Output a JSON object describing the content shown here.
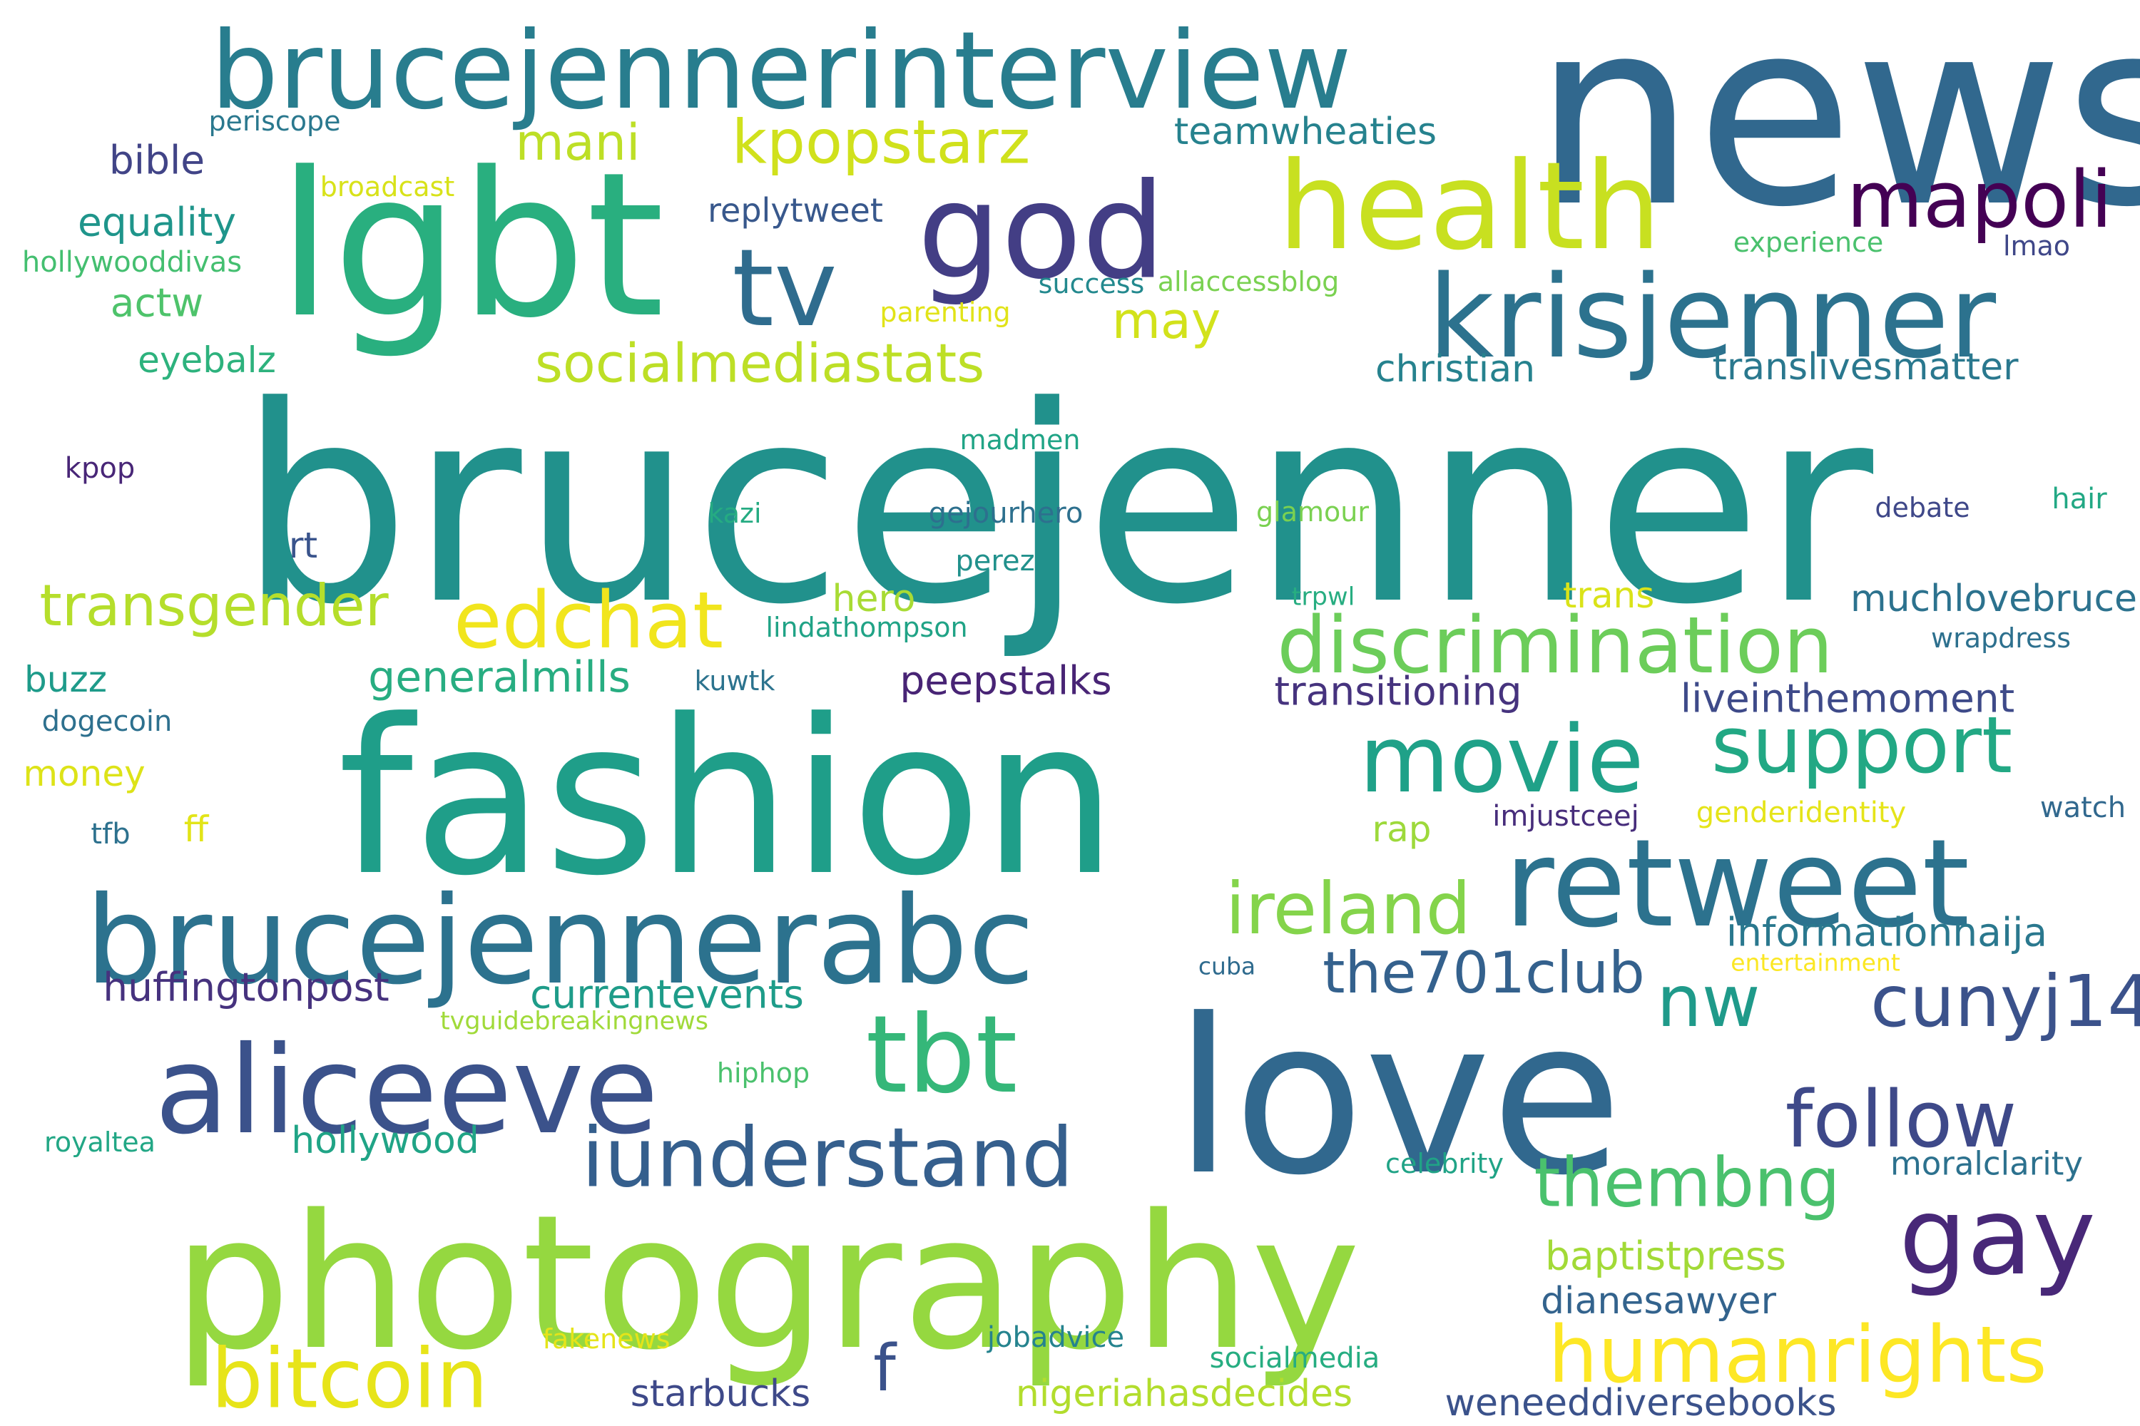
{
  "words": [
    {
      "text": "brucejenner",
      "color": "#21918c"
    },
    {
      "text": "news",
      "color": "#31688e"
    },
    {
      "text": "fashion",
      "color": "#1f9e89"
    },
    {
      "text": "love",
      "color": "#31688e"
    },
    {
      "text": "photography",
      "color": "#95d840"
    },
    {
      "text": "brucejennerinterview",
      "color": "#287d8e"
    },
    {
      "text": "lgbt",
      "color": "#29af7f"
    },
    {
      "text": "brucejennerabc",
      "color": "#2c728e"
    },
    {
      "text": "health",
      "color": "#c8e020"
    },
    {
      "text": "aliceeve",
      "color": "#3b528b"
    },
    {
      "text": "god",
      "color": "#433e85"
    },
    {
      "text": "krisjenner",
      "color": "#2c728e"
    },
    {
      "text": "retweet",
      "color": "#2c728e"
    },
    {
      "text": "tv",
      "color": "#2f6c8e"
    },
    {
      "text": "movie",
      "color": "#1fa188"
    },
    {
      "text": "gay",
      "color": "#482878"
    },
    {
      "text": "tbt",
      "color": "#35b779"
    },
    {
      "text": "discrimination",
      "color": "#6ccd5a"
    },
    {
      "text": "iunderstand",
      "color": "#355f8d"
    },
    {
      "text": "humanrights",
      "color": "#fde725"
    },
    {
      "text": "bitcoin",
      "color": "#e7e419"
    },
    {
      "text": "follow",
      "color": "#3e4989"
    },
    {
      "text": "support",
      "color": "#22a884"
    },
    {
      "text": "mapoli",
      "color": "#440154"
    },
    {
      "text": "edchat",
      "color": "#f1e51d"
    },
    {
      "text": "kpopstarz",
      "color": "#d0e11c"
    },
    {
      "text": "ireland",
      "color": "#84d44b"
    },
    {
      "text": "thembng",
      "color": "#4ac16d"
    },
    {
      "text": "transgender",
      "color": "#b5de2b"
    },
    {
      "text": "cunyj14",
      "color": "#3b528b"
    },
    {
      "text": "nw",
      "color": "#1f9a8a"
    },
    {
      "text": "the701club",
      "color": "#34618d"
    },
    {
      "text": "socialmediastats",
      "color": "#bddf26"
    },
    {
      "text": "mani",
      "color": "#bddf26"
    },
    {
      "text": "may",
      "color": "#d2e21b"
    },
    {
      "text": "f",
      "color": "#3b528b"
    },
    {
      "text": "teamwheaties",
      "color": "#26828e"
    },
    {
      "text": "replytweet",
      "color": "#38588c"
    },
    {
      "text": "equality",
      "color": "#1f958b"
    },
    {
      "text": "bible",
      "color": "#414487"
    },
    {
      "text": "actw",
      "color": "#4ec36b"
    },
    {
      "text": "eyebalz",
      "color": "#2db27d"
    },
    {
      "text": "christian",
      "color": "#26828e"
    },
    {
      "text": "translivesmatter",
      "color": "#2a788e"
    },
    {
      "text": "generalmills",
      "color": "#27ad81"
    },
    {
      "text": "peepstalks",
      "color": "#482475"
    },
    {
      "text": "transitioning",
      "color": "#46337e"
    },
    {
      "text": "liveinthemoment",
      "color": "#3e4a89"
    },
    {
      "text": "muchlovebruce",
      "color": "#2c728e"
    },
    {
      "text": "currentevents",
      "color": "#1e9c89"
    },
    {
      "text": "huffingtonpost",
      "color": "#46327e"
    },
    {
      "text": "informationnaija",
      "color": "#2a788e"
    },
    {
      "text": "hollywood",
      "color": "#20a486"
    },
    {
      "text": "baptistpress",
      "color": "#a2da37"
    },
    {
      "text": "dianesawyer",
      "color": "#33638d"
    },
    {
      "text": "starbucks",
      "color": "#3e4989"
    },
    {
      "text": "nigeriahasdecides",
      "color": "#b2dd2d"
    },
    {
      "text": "weneeddiversebooks",
      "color": "#3b528b"
    },
    {
      "text": "hero",
      "color": "#a8db34"
    },
    {
      "text": "buzz",
      "color": "#1e9b8a"
    },
    {
      "text": "money",
      "color": "#dde318"
    },
    {
      "text": "ff",
      "color": "#e2e418"
    },
    {
      "text": "rap",
      "color": "#9dd93b"
    },
    {
      "text": "rt",
      "color": "#3a548c"
    },
    {
      "text": "trans",
      "color": "#dae319"
    },
    {
      "text": "wrapdress",
      "color": "#2d708e"
    },
    {
      "text": "lindathompson",
      "color": "#20a386"
    },
    {
      "text": "kuwtk",
      "color": "#2c738e"
    },
    {
      "text": "dogecoin",
      "color": "#2d708e"
    },
    {
      "text": "tfb",
      "color": "#2d718e"
    },
    {
      "text": "imjustceej",
      "color": "#472d7b"
    },
    {
      "text": "genderidentity",
      "color": "#e5e419"
    },
    {
      "text": "watch",
      "color": "#31688e"
    },
    {
      "text": "entertainment",
      "color": "#fbe723"
    },
    {
      "text": "cuba",
      "color": "#2f6b8e"
    },
    {
      "text": "tvguidebreakingnews",
      "color": "#a0da39"
    },
    {
      "text": "hiphop",
      "color": "#4ac16d"
    },
    {
      "text": "royaltea",
      "color": "#22a785"
    },
    {
      "text": "celebrity",
      "color": "#20a386"
    },
    {
      "text": "moralclarity",
      "color": "#2c718e"
    },
    {
      "text": "fakenews",
      "color": "#e5e419"
    },
    {
      "text": "jobadvice",
      "color": "#25838e"
    },
    {
      "text": "socialmedia",
      "color": "#26ad81"
    },
    {
      "text": "periscope",
      "color": "#2a788e"
    },
    {
      "text": "broadcast",
      "color": "#d8e219"
    },
    {
      "text": "hollywooddivas",
      "color": "#44bf70"
    },
    {
      "text": "success",
      "color": "#23898e"
    },
    {
      "text": "allaccessblog",
      "color": "#7ad151"
    },
    {
      "text": "parenting",
      "color": "#e1e318"
    },
    {
      "text": "experience",
      "color": "#4ac16d"
    },
    {
      "text": "lmao",
      "color": "#3f4788"
    },
    {
      "text": "madmen",
      "color": "#20a486"
    },
    {
      "text": "kpop",
      "color": "#482677"
    },
    {
      "text": "kazi",
      "color": "#25ab82"
    },
    {
      "text": "gejourhero",
      "color": "#2d708e"
    },
    {
      "text": "glamour",
      "color": "#7ad151"
    },
    {
      "text": "hair",
      "color": "#22a884"
    },
    {
      "text": "debate",
      "color": "#3f4889"
    },
    {
      "text": "perez",
      "color": "#21918c"
    },
    {
      "text": "trpwl",
      "color": "#27ad81"
    }
  ]
}
